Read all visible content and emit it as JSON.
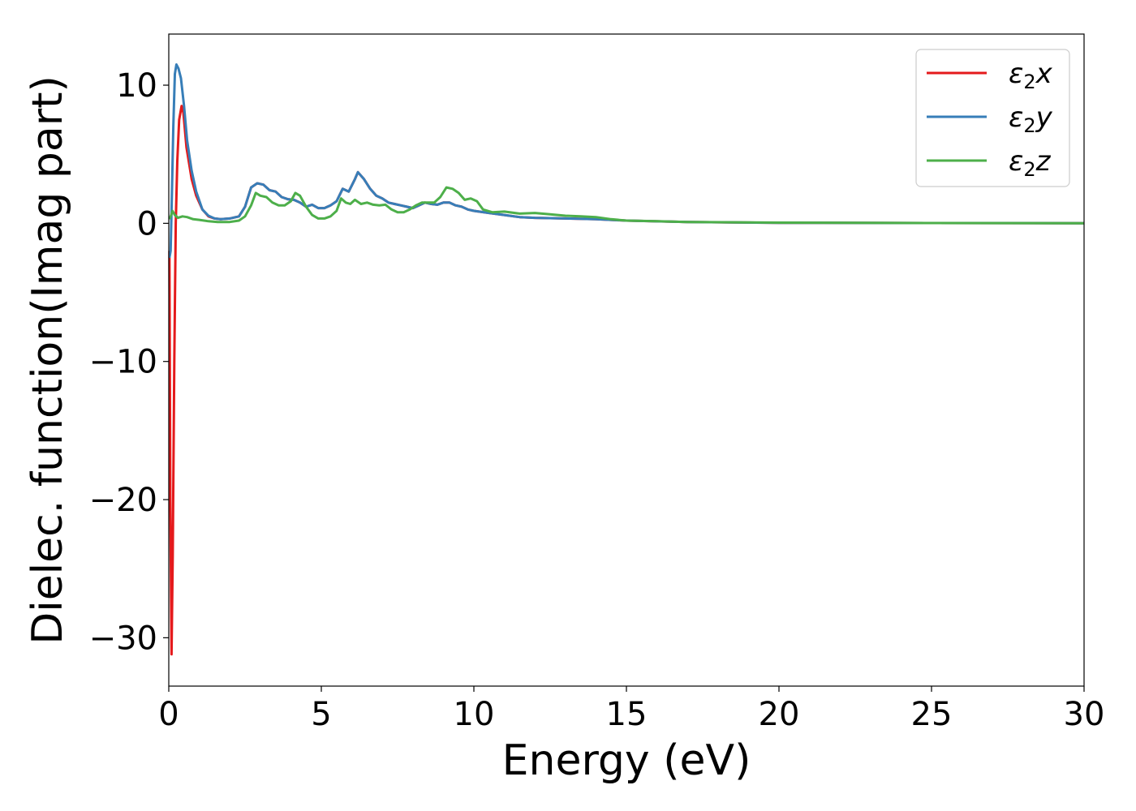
{
  "chart_data": {
    "type": "line",
    "title": "",
    "xlabel": "Energy (eV)",
    "ylabel": "Dielec. function(Imag part)",
    "xlim": [
      0,
      30
    ],
    "ylim": [
      -33.5,
      13.7
    ],
    "xticks": [
      0,
      5,
      10,
      15,
      20,
      25,
      30
    ],
    "yticks": [
      -30,
      -20,
      -10,
      0,
      10
    ],
    "xtick_labels": [
      "0",
      "5",
      "10",
      "15",
      "20",
      "25",
      "30"
    ],
    "ytick_labels": [
      "−30",
      "−20",
      "−10",
      "0",
      "10"
    ],
    "grid": false,
    "legend_position": "top-right",
    "series": [
      {
        "name": "ε2x",
        "legend_base": "ε",
        "legend_sub": "2",
        "legend_suffix": "x",
        "color": "#e41a1c",
        "points": [
          [
            0.02,
            -2.0
          ],
          [
            0.05,
            -20
          ],
          [
            0.09,
            -31.2
          ],
          [
            0.13,
            -24
          ],
          [
            0.18,
            -10
          ],
          [
            0.23,
            0
          ],
          [
            0.28,
            4.5
          ],
          [
            0.34,
            7.5
          ],
          [
            0.42,
            8.5
          ],
          [
            0.48,
            8.0
          ],
          [
            0.58,
            5.5
          ],
          [
            0.75,
            3.2
          ],
          [
            0.9,
            2.0
          ],
          [
            1.1,
            1.0
          ],
          [
            1.3,
            0.5
          ],
          [
            1.5,
            0.35
          ],
          [
            1.7,
            0.3
          ],
          [
            2.0,
            0.35
          ],
          [
            2.3,
            0.5
          ],
          [
            2.5,
            1.2
          ],
          [
            2.7,
            2.6
          ],
          [
            2.9,
            2.9
          ],
          [
            3.1,
            2.8
          ],
          [
            3.3,
            2.4
          ],
          [
            3.5,
            2.3
          ],
          [
            3.7,
            1.9
          ],
          [
            3.9,
            1.75
          ],
          [
            4.1,
            1.7
          ],
          [
            4.3,
            1.5
          ],
          [
            4.5,
            1.2
          ],
          [
            4.7,
            1.35
          ],
          [
            4.9,
            1.1
          ],
          [
            5.1,
            1.1
          ],
          [
            5.3,
            1.3
          ],
          [
            5.5,
            1.6
          ],
          [
            5.7,
            2.5
          ],
          [
            5.9,
            2.3
          ],
          [
            6.1,
            3.2
          ],
          [
            6.2,
            3.7
          ],
          [
            6.4,
            3.2
          ],
          [
            6.6,
            2.5
          ],
          [
            6.8,
            2.0
          ],
          [
            7.0,
            1.8
          ],
          [
            7.2,
            1.5
          ],
          [
            7.4,
            1.4
          ],
          [
            7.6,
            1.3
          ],
          [
            7.8,
            1.2
          ],
          [
            8.0,
            1.1
          ],
          [
            8.2,
            1.3
          ],
          [
            8.4,
            1.5
          ],
          [
            8.6,
            1.4
          ],
          [
            8.8,
            1.35
          ],
          [
            9.0,
            1.5
          ],
          [
            9.2,
            1.5
          ],
          [
            9.4,
            1.3
          ],
          [
            9.6,
            1.2
          ],
          [
            9.8,
            1.0
          ],
          [
            10.0,
            0.9
          ],
          [
            10.5,
            0.75
          ],
          [
            11.0,
            0.6
          ],
          [
            11.5,
            0.45
          ],
          [
            12.0,
            0.4
          ],
          [
            13.0,
            0.35
          ],
          [
            14.0,
            0.3
          ],
          [
            15.0,
            0.2
          ],
          [
            17.0,
            0.1
          ],
          [
            20.0,
            0.04
          ],
          [
            25.0,
            0.02
          ],
          [
            30.0,
            0.01
          ]
        ]
      },
      {
        "name": "ε2y",
        "legend_base": "ε",
        "legend_sub": "2",
        "legend_suffix": "y",
        "color": "#377eb8",
        "points": [
          [
            0.02,
            -2.5
          ],
          [
            0.06,
            -2.0
          ],
          [
            0.1,
            2.0
          ],
          [
            0.15,
            7.0
          ],
          [
            0.2,
            10.8
          ],
          [
            0.25,
            11.5
          ],
          [
            0.32,
            11.2
          ],
          [
            0.4,
            10.5
          ],
          [
            0.5,
            8.5
          ],
          [
            0.6,
            6.0
          ],
          [
            0.75,
            3.8
          ],
          [
            0.9,
            2.3
          ],
          [
            1.1,
            1.0
          ],
          [
            1.3,
            0.55
          ],
          [
            1.5,
            0.35
          ],
          [
            1.7,
            0.3
          ],
          [
            2.0,
            0.35
          ],
          [
            2.3,
            0.5
          ],
          [
            2.5,
            1.2
          ],
          [
            2.7,
            2.6
          ],
          [
            2.9,
            2.9
          ],
          [
            3.1,
            2.8
          ],
          [
            3.3,
            2.4
          ],
          [
            3.5,
            2.3
          ],
          [
            3.7,
            1.9
          ],
          [
            3.9,
            1.75
          ],
          [
            4.1,
            1.7
          ],
          [
            4.3,
            1.5
          ],
          [
            4.5,
            1.2
          ],
          [
            4.7,
            1.35
          ],
          [
            4.9,
            1.1
          ],
          [
            5.1,
            1.1
          ],
          [
            5.3,
            1.3
          ],
          [
            5.5,
            1.6
          ],
          [
            5.7,
            2.5
          ],
          [
            5.9,
            2.3
          ],
          [
            6.1,
            3.2
          ],
          [
            6.2,
            3.7
          ],
          [
            6.4,
            3.2
          ],
          [
            6.6,
            2.5
          ],
          [
            6.8,
            2.0
          ],
          [
            7.0,
            1.8
          ],
          [
            7.2,
            1.5
          ],
          [
            7.4,
            1.4
          ],
          [
            7.6,
            1.3
          ],
          [
            7.8,
            1.2
          ],
          [
            8.0,
            1.1
          ],
          [
            8.2,
            1.3
          ],
          [
            8.4,
            1.5
          ],
          [
            8.6,
            1.4
          ],
          [
            8.8,
            1.35
          ],
          [
            9.0,
            1.5
          ],
          [
            9.2,
            1.5
          ],
          [
            9.4,
            1.3
          ],
          [
            9.6,
            1.2
          ],
          [
            9.8,
            1.0
          ],
          [
            10.0,
            0.9
          ],
          [
            10.5,
            0.75
          ],
          [
            11.0,
            0.6
          ],
          [
            11.5,
            0.45
          ],
          [
            12.0,
            0.4
          ],
          [
            13.0,
            0.35
          ],
          [
            14.0,
            0.3
          ],
          [
            15.0,
            0.2
          ],
          [
            17.0,
            0.1
          ],
          [
            20.0,
            0.04
          ],
          [
            25.0,
            0.02
          ],
          [
            30.0,
            0.01
          ]
        ]
      },
      {
        "name": "ε2z",
        "legend_base": "ε",
        "legend_sub": "2",
        "legend_suffix": "z",
        "color": "#4daf4a",
        "points": [
          [
            0.02,
            0.3
          ],
          [
            0.08,
            0.6
          ],
          [
            0.12,
            0.9
          ],
          [
            0.2,
            0.6
          ],
          [
            0.3,
            0.4
          ],
          [
            0.45,
            0.5
          ],
          [
            0.6,
            0.45
          ],
          [
            0.8,
            0.3
          ],
          [
            1.0,
            0.25
          ],
          [
            1.3,
            0.15
          ],
          [
            1.6,
            0.1
          ],
          [
            2.0,
            0.1
          ],
          [
            2.3,
            0.2
          ],
          [
            2.5,
            0.5
          ],
          [
            2.7,
            1.3
          ],
          [
            2.85,
            2.2
          ],
          [
            3.0,
            2.0
          ],
          [
            3.2,
            1.9
          ],
          [
            3.4,
            1.5
          ],
          [
            3.6,
            1.3
          ],
          [
            3.8,
            1.3
          ],
          [
            4.0,
            1.6
          ],
          [
            4.15,
            2.2
          ],
          [
            4.3,
            2.0
          ],
          [
            4.5,
            1.2
          ],
          [
            4.7,
            0.6
          ],
          [
            4.9,
            0.35
          ],
          [
            5.1,
            0.35
          ],
          [
            5.3,
            0.5
          ],
          [
            5.5,
            0.9
          ],
          [
            5.65,
            1.8
          ],
          [
            5.8,
            1.5
          ],
          [
            5.95,
            1.4
          ],
          [
            6.1,
            1.7
          ],
          [
            6.3,
            1.4
          ],
          [
            6.5,
            1.5
          ],
          [
            6.7,
            1.35
          ],
          [
            6.9,
            1.3
          ],
          [
            7.1,
            1.35
          ],
          [
            7.3,
            1.0
          ],
          [
            7.5,
            0.8
          ],
          [
            7.7,
            0.8
          ],
          [
            7.9,
            1.0
          ],
          [
            8.1,
            1.3
          ],
          [
            8.3,
            1.5
          ],
          [
            8.5,
            1.5
          ],
          [
            8.7,
            1.5
          ],
          [
            8.9,
            1.9
          ],
          [
            9.1,
            2.6
          ],
          [
            9.3,
            2.5
          ],
          [
            9.5,
            2.2
          ],
          [
            9.7,
            1.7
          ],
          [
            9.9,
            1.8
          ],
          [
            10.1,
            1.6
          ],
          [
            10.3,
            1.0
          ],
          [
            10.6,
            0.8
          ],
          [
            11.0,
            0.85
          ],
          [
            11.5,
            0.7
          ],
          [
            12.0,
            0.75
          ],
          [
            12.5,
            0.65
          ],
          [
            13.0,
            0.55
          ],
          [
            13.5,
            0.5
          ],
          [
            14.0,
            0.45
          ],
          [
            14.5,
            0.3
          ],
          [
            15.0,
            0.2
          ],
          [
            16.0,
            0.15
          ],
          [
            17.0,
            0.1
          ],
          [
            20.0,
            0.05
          ],
          [
            25.0,
            0.02
          ],
          [
            30.0,
            0.01
          ]
        ]
      }
    ]
  }
}
